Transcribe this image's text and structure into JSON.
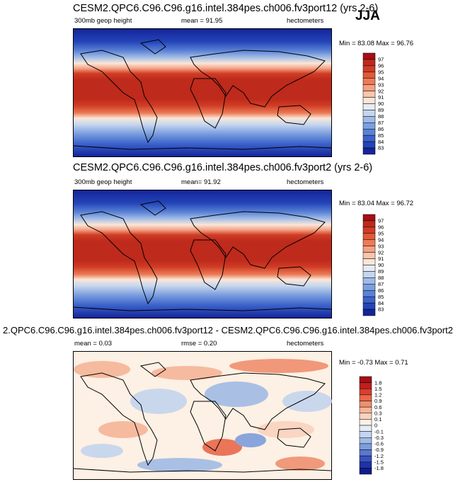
{
  "season": "JJA",
  "panels": [
    {
      "title": "CESM2.QPC6.C96.C96.g16.intel.384pes.ch006.fv3port12 (yrs 2-6)",
      "variable": "300mb geop height",
      "stat1": "mean = 91.95",
      "units": "hectometers",
      "minmax": "Min = 83.08 Max = 96.76"
    },
    {
      "title": "CESM2.QPC6.C96.C96.g16.intel.384pes.ch006.fv3port2 (yrs 2-6)",
      "variable": "300mb geop height",
      "stat1": "mean= 91.92",
      "units": "hectometers",
      "minmax": "Min = 83.04 Max = 96.72"
    },
    {
      "title": "2.QPC6.C96.C96.g16.intel.384pes.ch006.fv3port12 - CESM2.QPC6.C96.C96.g16.intel.384pes.ch006.fv3port2",
      "stat1": "mean = 0.03",
      "stat2": "rmse = 0.20",
      "units": "hectometers",
      "minmax": "Min = -0.73 Max = 0.71"
    }
  ],
  "chart_data": [
    {
      "type": "heatmap",
      "title": "CESM2.QPC6.C96.C96.g16.intel.384pes.ch006.fv3port12 (yrs 2-6)",
      "variable": "300mb geop height",
      "units": "hectometers",
      "mean": 91.95,
      "min": 83.08,
      "max": 96.76,
      "colorbar_levels": [
        97,
        96,
        95,
        94,
        93,
        92,
        91,
        90,
        89,
        88,
        87,
        86,
        85,
        84,
        83
      ],
      "colorbar_colors": [
        "#a50f15",
        "#be2a1c",
        "#d03c24",
        "#e05a38",
        "#ec7c57",
        "#f4a183",
        "#f8c6ab",
        "#fbe6d8",
        "#e6ecf6",
        "#c6d6ee",
        "#9fbbe6",
        "#7c9fdf",
        "#5a82d6",
        "#3c63cb",
        "#2445b8",
        "#14249a"
      ]
    },
    {
      "type": "heatmap",
      "title": "CESM2.QPC6.C96.C96.g16.intel.384pes.ch006.fv3port2 (yrs 2-6)",
      "variable": "300mb geop height",
      "units": "hectometers",
      "mean": 91.92,
      "min": 83.04,
      "max": 96.72,
      "colorbar_levels": [
        97,
        96,
        95,
        94,
        93,
        92,
        91,
        90,
        89,
        88,
        87,
        86,
        85,
        84,
        83
      ],
      "colorbar_colors": [
        "#a50f15",
        "#be2a1c",
        "#d03c24",
        "#e05a38",
        "#ec7c57",
        "#f4a183",
        "#f8c6ab",
        "#fbe6d8",
        "#e6ecf6",
        "#c6d6ee",
        "#9fbbe6",
        "#7c9fdf",
        "#5a82d6",
        "#3c63cb",
        "#2445b8",
        "#14249a"
      ]
    },
    {
      "type": "heatmap",
      "title": "2.QPC6.C96.C96.g16.intel.384pes.ch006.fv3port12 - CESM2.QPC6.C96.C96.g16.intel.384pes.ch006.fv3port2",
      "units": "hectometers",
      "mean": 0.03,
      "rmse": 0.2,
      "min": -0.73,
      "max": 0.71,
      "colorbar_levels": [
        "1.8",
        "1.5",
        "1.2",
        "0.9",
        "0.6",
        "0.3",
        "0.1",
        "0",
        "-0.1",
        "-0.3",
        "-0.6",
        "-0.9",
        "-1.2",
        "-1.5",
        "-1.8"
      ],
      "colorbar_colors": [
        "#a50f15",
        "#c21e1e",
        "#d8402e",
        "#e8684a",
        "#f08f6f",
        "#f6b598",
        "#fad3bf",
        "#fdf0e4",
        "#e3ecf8",
        "#c4d5ef",
        "#a0bbe5",
        "#7d9ddc",
        "#5878cf",
        "#3853be",
        "#1f32a8",
        "#101d8c"
      ]
    }
  ]
}
